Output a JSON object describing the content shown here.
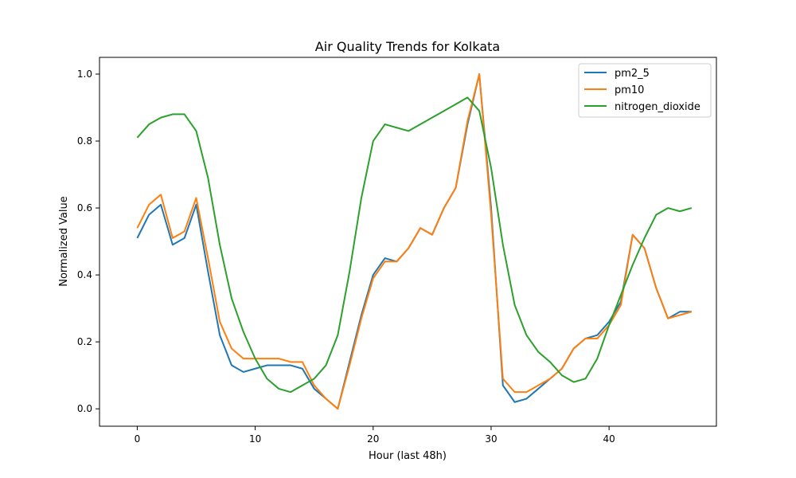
{
  "chart_data": {
    "type": "line",
    "title": "Air Quality Trends for Kolkata",
    "xlabel": "Hour (last 48h)",
    "ylabel": "Normalized Value",
    "xlim": [
      -3.2,
      49.1
    ],
    "ylim": [
      -0.052,
      1.05
    ],
    "xticks": [
      0,
      10,
      20,
      30,
      40
    ],
    "yticks": [
      0.0,
      0.2,
      0.4,
      0.6,
      0.8,
      1.0
    ],
    "xtick_labels": [
      "0",
      "10",
      "20",
      "30",
      "40"
    ],
    "ytick_labels": [
      "0.0",
      "0.2",
      "0.4",
      "0.6",
      "0.8",
      "1.0"
    ],
    "grid": false,
    "legend_position": "top-right",
    "x": [
      0,
      1,
      2,
      3,
      4,
      5,
      6,
      7,
      8,
      9,
      10,
      11,
      12,
      13,
      14,
      15,
      16,
      17,
      18,
      19,
      20,
      21,
      22,
      23,
      24,
      25,
      26,
      27,
      28,
      29,
      30,
      31,
      32,
      33,
      34,
      35,
      36,
      37,
      38,
      39,
      40,
      41,
      42,
      43,
      44,
      45,
      46,
      47
    ],
    "series": [
      {
        "name": "pm2_5",
        "color": "#1f77b4",
        "values": [
          0.51,
          0.58,
          0.61,
          0.49,
          0.51,
          0.61,
          0.41,
          0.22,
          0.13,
          0.11,
          0.12,
          0.13,
          0.13,
          0.13,
          0.12,
          0.06,
          0.03,
          0.0,
          0.14,
          0.28,
          0.4,
          0.45,
          0.44,
          0.48,
          0.54,
          0.52,
          0.6,
          0.66,
          0.85,
          1.0,
          0.6,
          0.07,
          0.02,
          0.03,
          0.06,
          0.09,
          0.12,
          0.18,
          0.21,
          0.22,
          0.26,
          0.32,
          0.52,
          0.48,
          0.36,
          0.27,
          0.29,
          0.29
        ]
      },
      {
        "name": "pm10",
        "color": "#ff7f0e",
        "values": [
          0.54,
          0.61,
          0.64,
          0.51,
          0.53,
          0.63,
          0.45,
          0.26,
          0.18,
          0.15,
          0.15,
          0.15,
          0.15,
          0.14,
          0.14,
          0.07,
          0.03,
          0.0,
          0.13,
          0.27,
          0.39,
          0.44,
          0.44,
          0.48,
          0.54,
          0.52,
          0.6,
          0.66,
          0.86,
          1.0,
          0.58,
          0.09,
          0.05,
          0.05,
          0.07,
          0.09,
          0.12,
          0.18,
          0.21,
          0.21,
          0.25,
          0.31,
          0.52,
          0.48,
          0.36,
          0.27,
          0.28,
          0.29
        ]
      },
      {
        "name": "nitrogen_dioxide",
        "color": "#2ca02c",
        "values": [
          0.81,
          0.85,
          0.87,
          0.88,
          0.88,
          0.83,
          0.69,
          0.49,
          0.33,
          0.23,
          0.15,
          0.09,
          0.06,
          0.05,
          0.07,
          0.09,
          0.13,
          0.22,
          0.41,
          0.63,
          0.8,
          0.85,
          0.84,
          0.83,
          0.85,
          0.87,
          0.89,
          0.91,
          0.93,
          0.89,
          0.72,
          0.49,
          0.31,
          0.22,
          0.17,
          0.14,
          0.1,
          0.08,
          0.09,
          0.15,
          0.25,
          0.34,
          0.43,
          0.51,
          0.58,
          0.6,
          0.59,
          0.6
        ]
      }
    ]
  }
}
